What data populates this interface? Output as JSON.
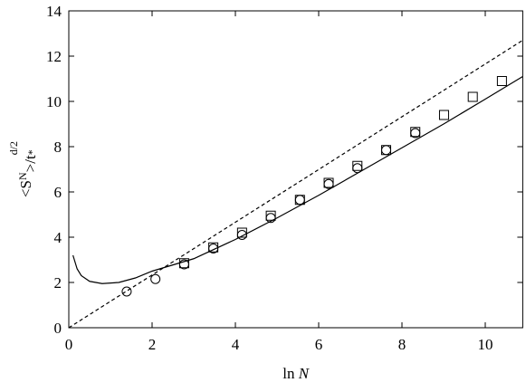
{
  "chart_data": {
    "type": "scatter",
    "x_label": [
      "ln ",
      "N"
    ],
    "y_label": [
      "<S",
      "N",
      ">/t",
      "*",
      "d/2"
    ],
    "xlim": [
      0,
      10.9
    ],
    "xticks": [
      0,
      2,
      4,
      6,
      8,
      10
    ],
    "ylim": [
      0,
      14
    ],
    "yticks": [
      0,
      2,
      4,
      6,
      8,
      10,
      12,
      14
    ],
    "series": [
      {
        "marker": "circle",
        "color": "#000000",
        "x": [
          1.39,
          2.08,
          2.77,
          3.47,
          4.16,
          4.85,
          5.55,
          6.24,
          6.93,
          7.62,
          8.32
        ],
        "values": [
          1.6,
          2.15,
          2.8,
          3.5,
          4.1,
          4.85,
          5.65,
          6.35,
          7.05,
          7.85,
          8.6
        ]
      },
      {
        "marker": "square",
        "color": "#000000",
        "x": [
          2.77,
          3.47,
          4.16,
          4.85,
          5.55,
          6.24,
          6.93,
          7.62,
          8.32,
          9.01,
          9.7,
          10.4
        ],
        "values": [
          2.85,
          3.55,
          4.2,
          4.95,
          5.65,
          6.4,
          7.15,
          7.85,
          8.65,
          9.4,
          10.2,
          10.9
        ]
      },
      {
        "marker": "line",
        "dash": false,
        "color": "#000000",
        "x": [
          0.1,
          0.2,
          0.3,
          0.5,
          0.8,
          1.2,
          1.6,
          2,
          3,
          4,
          5,
          6,
          7,
          8,
          9,
          10,
          10.9
        ],
        "values": [
          3.2,
          2.6,
          2.3,
          2.05,
          1.95,
          2.0,
          2.2,
          2.5,
          3.05,
          3.9,
          4.85,
          5.85,
          6.9,
          7.95,
          9.0,
          10.1,
          11.1
        ]
      },
      {
        "marker": "line",
        "dash": true,
        "color": "#000000",
        "x": [
          0,
          10.9
        ],
        "values": [
          0,
          12.7
        ]
      }
    ]
  }
}
